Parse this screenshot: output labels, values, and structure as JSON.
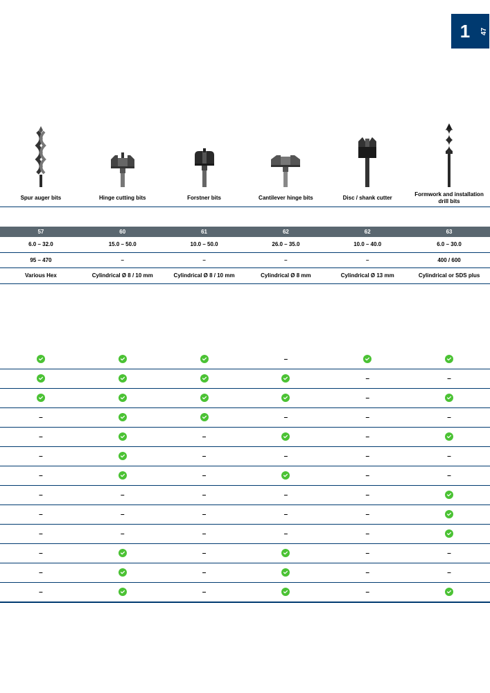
{
  "page": {
    "section": "1",
    "number": "47"
  },
  "products": [
    {
      "label": "Spur auger bits"
    },
    {
      "label": "Hinge cutting bits"
    },
    {
      "label": "Forstner bits"
    },
    {
      "label": "Cantilever hinge bits"
    },
    {
      "label": "Disc / shank cutter"
    },
    {
      "label": "Formwork and installation drill bits"
    }
  ],
  "spec_header": [
    "57",
    "60",
    "61",
    "62",
    "62",
    "63"
  ],
  "spec_rows": [
    [
      "6.0 – 32.0",
      "15.0 – 50.0",
      "10.0 – 50.0",
      "26.0 – 35.0",
      "10.0 – 40.0",
      "6.0 – 30.0"
    ],
    [
      "95 – 470",
      "–",
      "–",
      "–",
      "–",
      "400 / 600"
    ],
    [
      "Various Hex",
      "Cylindrical Ø 8 / 10 mm",
      "Cylindrical Ø 8 / 10 mm",
      "Cylindrical Ø 8 mm",
      "Cylindrical Ø 13 mm",
      "Cylindrical or SDS plus"
    ]
  ],
  "matrix": [
    [
      "y",
      "y",
      "y",
      "-",
      "y",
      "y"
    ],
    [
      "y",
      "y",
      "y",
      "y",
      "-",
      "-"
    ],
    [
      "y",
      "y",
      "y",
      "y",
      "-",
      "y"
    ],
    [
      "-",
      "y",
      "y",
      "-",
      "-",
      "-"
    ],
    [
      "-",
      "y",
      "-",
      "y",
      "-",
      "y"
    ],
    [
      "-",
      "y",
      "-",
      "-",
      "-",
      "-"
    ],
    [
      "-",
      "y",
      "-",
      "y",
      "-",
      "-"
    ],
    [
      "-",
      "-",
      "-",
      "-",
      "-",
      "y"
    ],
    [
      "-",
      "-",
      "-",
      "-",
      "-",
      "y"
    ],
    [
      "-",
      "-",
      "-",
      "-",
      "-",
      "y"
    ],
    [
      "-",
      "y",
      "-",
      "y",
      "-",
      "-"
    ],
    [
      "-",
      "y",
      "-",
      "y",
      "-",
      "-"
    ],
    [
      "-",
      "y",
      "-",
      "y",
      "-",
      "y"
    ]
  ],
  "colors": {
    "brand": "#003a70",
    "header_bg": "#5a6770",
    "check_green": "#4bc234"
  }
}
